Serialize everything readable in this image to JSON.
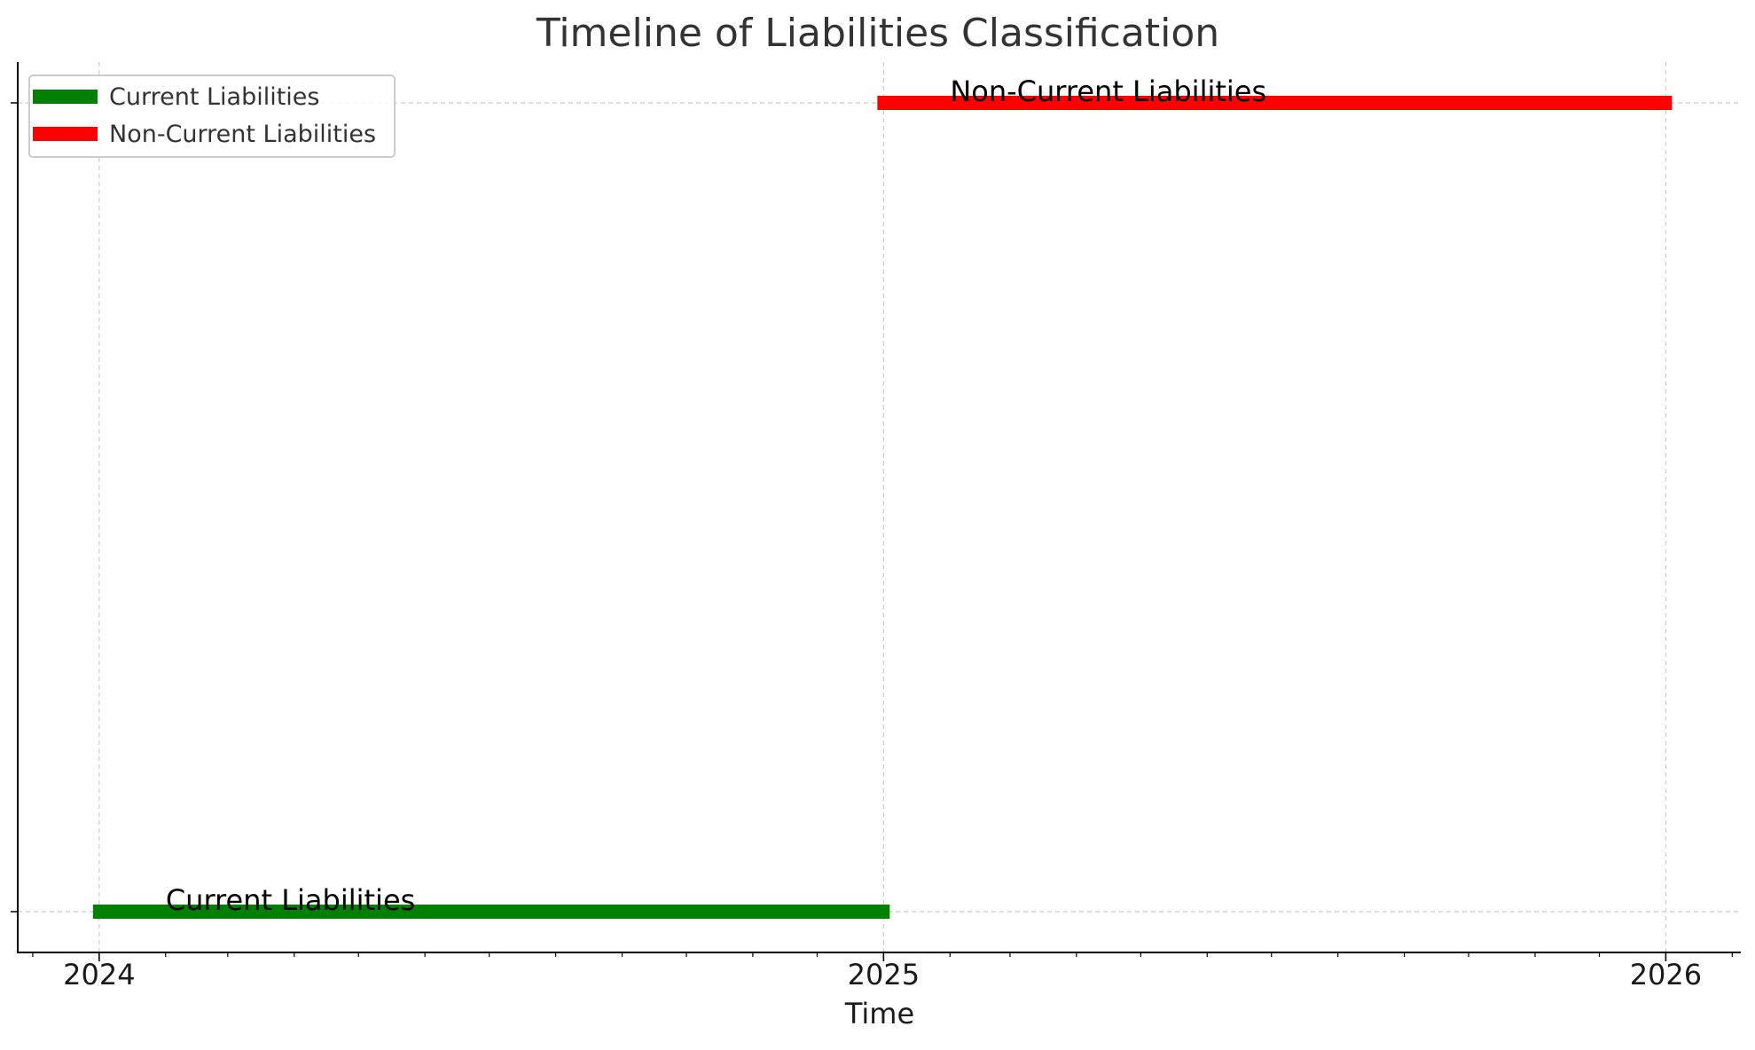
{
  "chart_data": {
    "type": "timeline",
    "title": "Timeline of Liabilities Classification",
    "xlabel": "Time",
    "ylabel": "",
    "x_axis": {
      "unit": "date",
      "range": [
        "2023-11-24",
        "2026-02-05"
      ],
      "ticks": [
        {
          "value": "2024-01-01",
          "label": "2024"
        },
        {
          "value": "2025-01-01",
          "label": "2025"
        },
        {
          "value": "2026-01-01",
          "label": "2026"
        }
      ],
      "minor_ticks": "monthly"
    },
    "grid": true,
    "legend": {
      "position": "upper-left",
      "entries": [
        {
          "label": "Current Liabilities",
          "color": "#008000"
        },
        {
          "label": "Non-Current Liabilities",
          "color": "#ff0000"
        }
      ]
    },
    "series": [
      {
        "name": "Current Liabilities",
        "color": "#008000",
        "start": "2024-01-01",
        "end": "2025-01-01",
        "row": 0
      },
      {
        "name": "Non-Current Liabilities",
        "color": "#ff0000",
        "start": "2025-01-01",
        "end": "2026-01-01",
        "row": 1
      }
    ]
  }
}
